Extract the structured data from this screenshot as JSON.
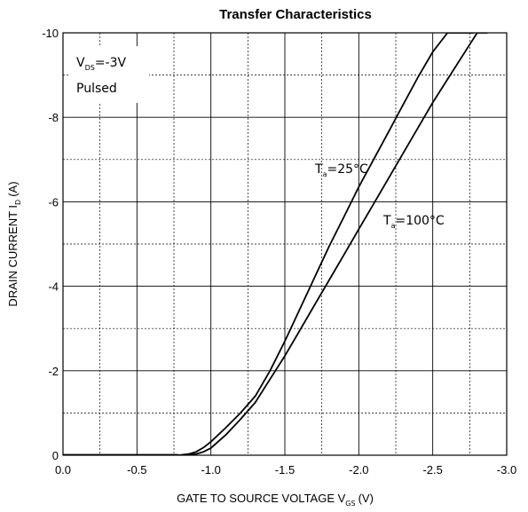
{
  "chart_data": {
    "type": "line",
    "title": "Transfer Characteristics",
    "xlabel": {
      "main": "GATE TO SOURCE VOLTAGE V",
      "sub": "GS",
      "unit": "(V)"
    },
    "ylabel": {
      "main": "DRAIN CURRENT I",
      "sub": "D",
      "unit": "(A)"
    },
    "xlim": [
      0,
      -3.0
    ],
    "ylim": [
      0,
      -10
    ],
    "x_ticks": [
      0,
      -0.5,
      -1.0,
      -1.5,
      -2.0,
      -2.5,
      -3.0
    ],
    "x_tick_labels": [
      "0.0",
      "-0.5",
      "-1.0",
      "-1.5",
      "-2.0",
      "-2.5",
      "-3.0"
    ],
    "y_ticks": [
      0,
      -2,
      -4,
      -6,
      -8,
      -10
    ],
    "y_tick_labels": [
      "0",
      "-2",
      "-4",
      "-6",
      "-8",
      "-10"
    ],
    "grid": {
      "x_step": 0.25,
      "y_step": 1,
      "major_solid_x": [
        -0.5,
        -1.0,
        -1.5,
        -2.0,
        -2.5
      ],
      "major_solid_y": [
        -2,
        -4,
        -6,
        -8
      ]
    },
    "conditions": [
      {
        "main": "V",
        "sub": "DS",
        "rest": "=-3V"
      },
      {
        "main": "Pulsed",
        "sub": "",
        "rest": ""
      }
    ],
    "series": [
      {
        "name": {
          "main": "T",
          "sub": "a",
          "rest": "=25°C"
        },
        "x": [
          -0.78,
          -0.85,
          -0.9,
          -0.95,
          -1.0,
          -1.1,
          -1.2,
          -1.3,
          -1.4,
          -1.5,
          -1.6,
          -1.7,
          -1.8,
          -1.9,
          -2.0,
          -2.1,
          -2.2,
          -2.3,
          -2.4,
          -2.5,
          -2.6,
          -2.7,
          -2.78
        ],
        "y": [
          0,
          -0.03,
          -0.08,
          -0.18,
          -0.32,
          -0.65,
          -1.0,
          -1.4,
          -2.0,
          -2.7,
          -3.45,
          -4.2,
          -4.95,
          -5.65,
          -6.35,
          -7.0,
          -7.65,
          -8.3,
          -8.95,
          -9.55,
          -10.0,
          -10.0,
          -10.0
        ]
      },
      {
        "name": {
          "main": "T",
          "sub": "a",
          "rest": "=100°C"
        },
        "x": [
          -0.8,
          -0.9,
          -0.95,
          -1.0,
          -1.1,
          -1.2,
          -1.3,
          -1.4,
          -1.5,
          -1.6,
          -1.7,
          -1.8,
          -1.9,
          -2.0,
          -2.1,
          -2.2,
          -2.3,
          -2.4,
          -2.5,
          -2.6,
          -2.7,
          -2.8,
          -2.87
        ],
        "y": [
          0,
          -0.03,
          -0.08,
          -0.17,
          -0.48,
          -0.85,
          -1.25,
          -1.8,
          -2.35,
          -2.95,
          -3.55,
          -4.15,
          -4.75,
          -5.35,
          -5.95,
          -6.55,
          -7.15,
          -7.75,
          -8.35,
          -8.9,
          -9.45,
          -10.0,
          -10.0
        ]
      }
    ]
  }
}
